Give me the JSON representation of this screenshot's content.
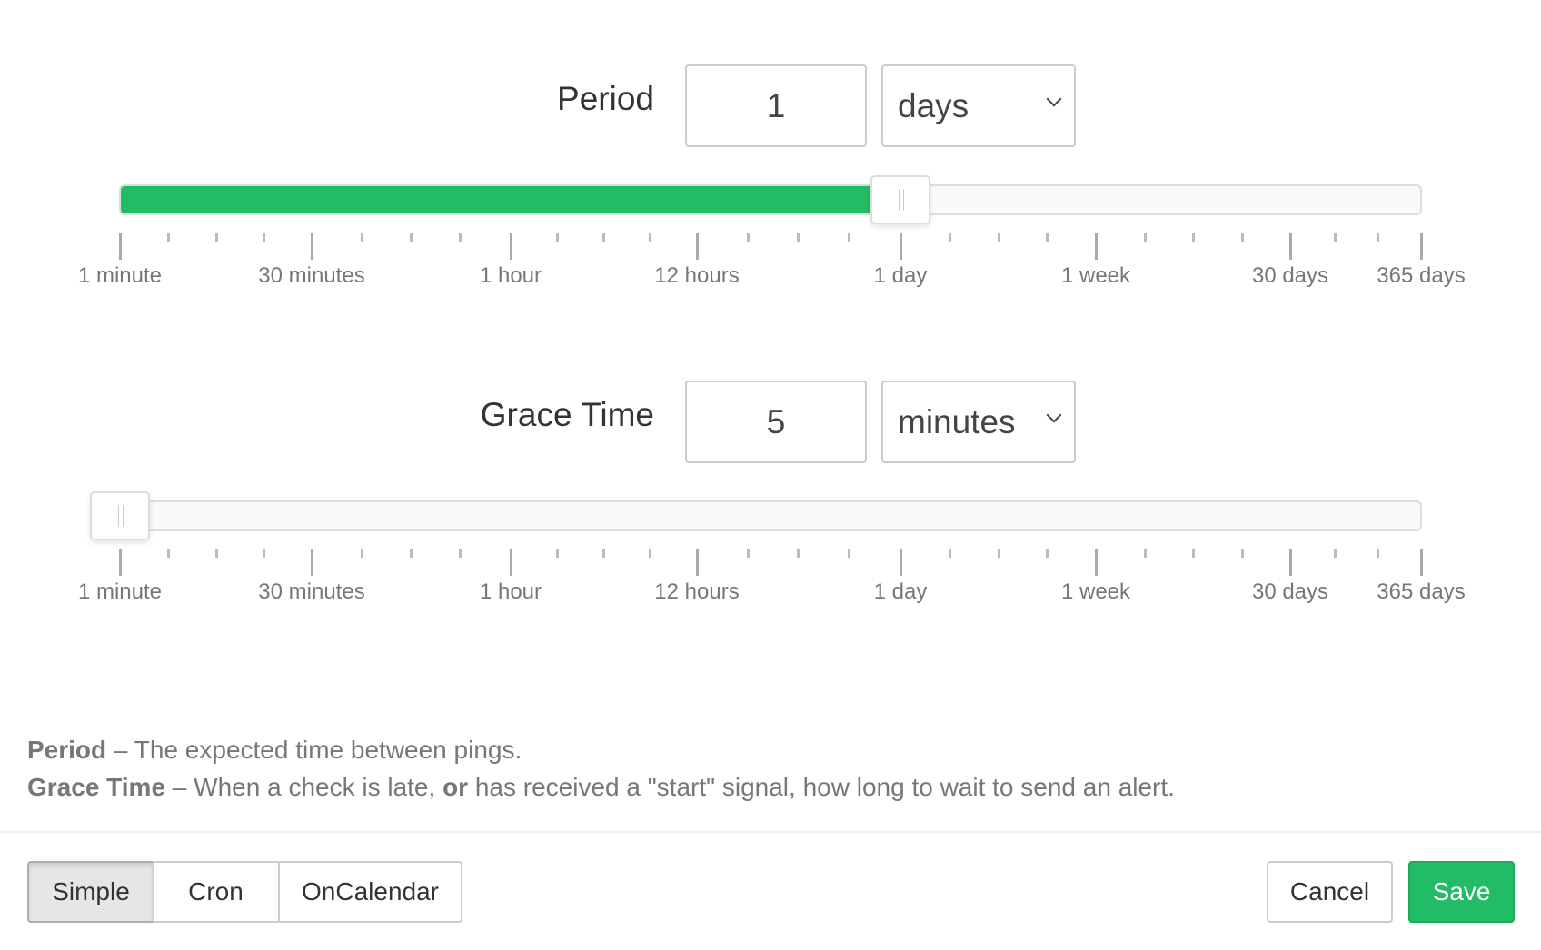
{
  "period": {
    "label": "Period",
    "value": "1",
    "unit": "days",
    "slider_fraction": 0.6
  },
  "grace": {
    "label": "Grace Time",
    "value": "5",
    "unit": "minutes",
    "slider_fraction": 0
  },
  "slider_labels": [
    "1 minute",
    "30 minutes",
    "1 hour",
    "12 hours",
    "1 day",
    "1 week",
    "30 days",
    "365 days"
  ],
  "help": {
    "period_term": "Period",
    "period_text": " – The expected time between pings.",
    "grace_term": "Grace Time",
    "grace_text_1": " – When a check is late, ",
    "grace_or": "or",
    "grace_text_2": " has received a \"start\" signal, how long to wait to send an alert."
  },
  "footer": {
    "modes": [
      "Simple",
      "Cron",
      "OnCalendar"
    ],
    "active_mode": "Simple",
    "cancel": "Cancel",
    "save": "Save"
  },
  "colors": {
    "accent": "#22bb66"
  }
}
